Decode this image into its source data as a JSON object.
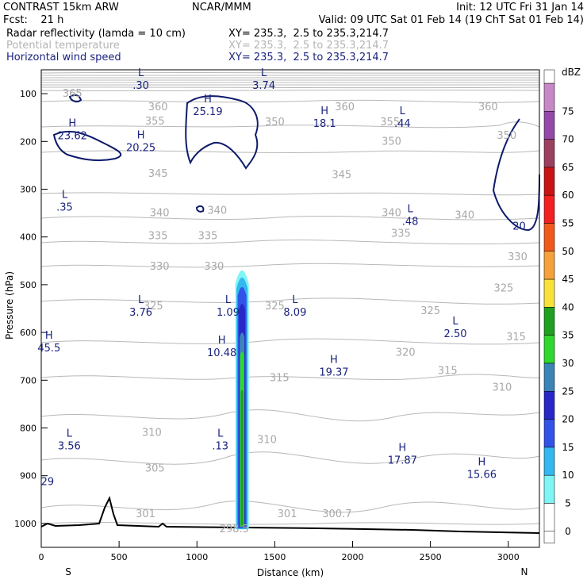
{
  "header": {
    "model": "CONTRAST 15km ARW",
    "center": "NCAR/MMM",
    "init": "Init: 12 UTC Fri 31 Jan 14",
    "fcst": "Fcst:    21 h",
    "valid": "Valid: 09 UTC Sat 01 Feb 14 (19 ChT Sat 01 Feb 14)"
  },
  "fields": [
    {
      "name": "Radar reflectivity (lamda = 10 cm)",
      "xy": "XY= 235.3,  2.5 to 235.3,214.7",
      "color": "#000000"
    },
    {
      "name": "Potential temperature",
      "xy": "XY= 235.3,  2.5 to 235.3,214.7",
      "color": "#b4b4b4"
    },
    {
      "name": "Horizontal wind speed",
      "xy": "XY= 235.3,  2.5 to 235.3,214.7",
      "color": "#1a237e"
    }
  ],
  "chart_data": {
    "type": "contour cross-section",
    "xlabel": "Distance (km)",
    "ylabel": "Pressure (hPa)",
    "x_ticks": [
      0,
      500,
      1000,
      1500,
      2000,
      2500,
      3000
    ],
    "x_range": [
      0,
      3200
    ],
    "y_ticks": [
      100,
      200,
      300,
      400,
      500,
      600,
      700,
      800,
      900,
      1000
    ],
    "y_range": [
      50,
      1050
    ],
    "y_scale": "linear",
    "endpoints": {
      "left": "S",
      "right": "N"
    },
    "colorbar": {
      "unit": "dBZ",
      "levels": [
        0,
        5,
        10,
        15,
        20,
        25,
        30,
        35,
        40,
        45,
        50,
        55,
        60,
        65,
        70,
        75
      ],
      "colors": [
        "#ffffff",
        "#7ff5f5",
        "#33b8f0",
        "#3352e8",
        "#2828c8",
        "#3b84b8",
        "#2ed82e",
        "#20a020",
        "#f8e23a",
        "#f6a23c",
        "#f25a1c",
        "#f22020",
        "#c81414",
        "#9c4060",
        "#9648a8",
        "#c888c8"
      ]
    },
    "theta_labels": [
      {
        "text": "360",
        "x": 750,
        "p": 128
      },
      {
        "text": "360",
        "x": 1950,
        "p": 128
      },
      {
        "text": "360",
        "x": 2870,
        "p": 128
      },
      {
        "text": "355",
        "x": 730,
        "p": 158
      },
      {
        "text": "350",
        "x": 1500,
        "p": 160
      },
      {
        "text": "355",
        "x": 2240,
        "p": 160
      },
      {
        "text": "350",
        "x": 2990,
        "p": 188
      },
      {
        "text": "350",
        "x": 2250,
        "p": 200
      },
      {
        "text": "345",
        "x": 750,
        "p": 268
      },
      {
        "text": "345",
        "x": 1930,
        "p": 270
      },
      {
        "text": "340",
        "x": 760,
        "p": 350
      },
      {
        "text": "340",
        "x": 1130,
        "p": 345
      },
      {
        "text": "340",
        "x": 2250,
        "p": 350
      },
      {
        "text": "340",
        "x": 2720,
        "p": 355
      },
      {
        "text": "335",
        "x": 750,
        "p": 398
      },
      {
        "text": "335",
        "x": 1070,
        "p": 398
      },
      {
        "text": "335",
        "x": 2310,
        "p": 393
      },
      {
        "text": "330",
        "x": 760,
        "p": 462
      },
      {
        "text": "330",
        "x": 1110,
        "p": 462
      },
      {
        "text": "330",
        "x": 3060,
        "p": 442
      },
      {
        "text": "325",
        "x": 720,
        "p": 545
      },
      {
        "text": "325",
        "x": 1500,
        "p": 545
      },
      {
        "text": "325",
        "x": 2500,
        "p": 555
      },
      {
        "text": "325",
        "x": 2970,
        "p": 508
      },
      {
        "text": "320",
        "x": 2340,
        "p": 642
      },
      {
        "text": "315",
        "x": 1530,
        "p": 695
      },
      {
        "text": "315",
        "x": 2610,
        "p": 680
      },
      {
        "text": "315",
        "x": 3050,
        "p": 610
      },
      {
        "text": "310",
        "x": 2960,
        "p": 715
      },
      {
        "text": "310",
        "x": 710,
        "p": 810
      },
      {
        "text": "310",
        "x": 1450,
        "p": 825
      },
      {
        "text": "305",
        "x": 730,
        "p": 885
      },
      {
        "text": "301",
        "x": 670,
        "p": 980
      },
      {
        "text": "301",
        "x": 1580,
        "p": 980
      },
      {
        "text": "300.7",
        "x": 1900,
        "p": 980
      },
      {
        "text": "298.5",
        "x": 1240,
        "p": 1012
      },
      {
        "text": "365",
        "x": 200,
        "p": 100
      }
    ],
    "wind_labels": [
      {
        "mark": "L",
        "value": ".30",
        "x": 640,
        "p": 80
      },
      {
        "mark": "L",
        "value": "3.74",
        "x": 1430,
        "p": 80
      },
      {
        "mark": "H",
        "value": "25.19",
        "x": 1070,
        "p": 135
      },
      {
        "mark": "H",
        "value": "18.1",
        "x": 1820,
        "p": 160
      },
      {
        "mark": "L",
        "value": ".44",
        "x": 2320,
        "p": 160
      },
      {
        "mark": "H",
        "value": "23.62",
        "x": 200,
        "p": 185
      },
      {
        "mark": "H",
        "value": "20.25",
        "x": 640,
        "p": 210
      },
      {
        "mark": "L",
        "value": ".35",
        "x": 150,
        "p": 335
      },
      {
        "mark": "L",
        "value": ".48",
        "x": 2370,
        "p": 365
      },
      {
        "mark": "L",
        "value": "3.76",
        "x": 640,
        "p": 555
      },
      {
        "mark": "L",
        "value": "1.09",
        "x": 1200,
        "p": 555
      },
      {
        "mark": "L",
        "value": "8.09",
        "x": 1630,
        "p": 555
      },
      {
        "mark": "L",
        "value": "2.50",
        "x": 2660,
        "p": 600
      },
      {
        "mark": "H",
        "value": "45.5",
        "x": 50,
        "p": 630
      },
      {
        "mark": "H",
        "value": "10.48",
        "x": 1160,
        "p": 640
      },
      {
        "mark": "H",
        "value": "19.37",
        "x": 1880,
        "p": 680
      },
      {
        "mark": "L",
        "value": "3.56",
        "x": 180,
        "p": 835
      },
      {
        "mark": "L",
        "value": ".13",
        "x": 1150,
        "p": 835
      },
      {
        "mark": "H",
        "value": "17.87",
        "x": 2320,
        "p": 865
      },
      {
        "mark": "H",
        "value": "15.66",
        "x": 2830,
        "p": 895
      },
      {
        "mark": "",
        "value": "20",
        "x": 3070,
        "p": 375
      },
      {
        "mark": "",
        "value": "29",
        "x": 40,
        "p": 910
      }
    ],
    "grid": false,
    "legend": "right"
  }
}
